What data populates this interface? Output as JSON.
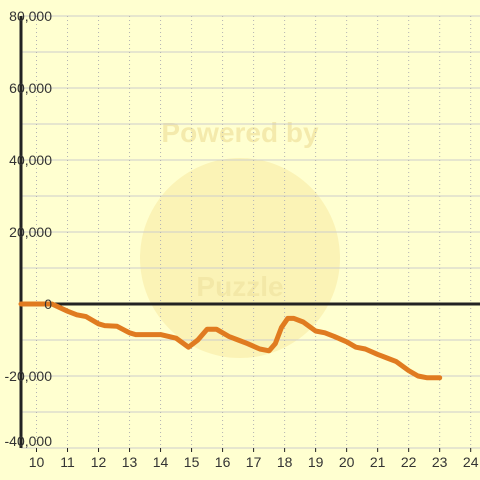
{
  "chart_data": {
    "type": "line",
    "title": "",
    "xlabel": "",
    "ylabel": "",
    "xlim": [
      9.5,
      24.3
    ],
    "ylim": [
      -40000,
      80000
    ],
    "x_ticks": [
      10,
      11,
      12,
      13,
      14,
      15,
      16,
      17,
      18,
      19,
      20,
      21,
      22,
      23,
      24
    ],
    "y_ticks": [
      -40000,
      -20000,
      0,
      20000,
      40000,
      60000,
      80000
    ],
    "x_tick_labels": [
      "10",
      "11",
      "12",
      "13",
      "14",
      "15",
      "16",
      "17",
      "18",
      "19",
      "20",
      "21",
      "22",
      "23",
      "24"
    ],
    "y_tick_labels": [
      "-40,000",
      "-20,000",
      "0",
      "20,000",
      "40,000",
      "60,000",
      "80,000"
    ],
    "grid": {
      "horizontal": "solid",
      "vertical": "dotted"
    },
    "series": [
      {
        "color": "#e07b20",
        "x": [
          9.5,
          10,
          10.5,
          11,
          11.3,
          11.6,
          12,
          12.2,
          12.6,
          13,
          13.2,
          13.5,
          14,
          14.5,
          14.9,
          15.2,
          15.5,
          15.8,
          16.2,
          16.5,
          16.8,
          17.2,
          17.5,
          17.7,
          17.9,
          18.1,
          18.3,
          18.6,
          19,
          19.3,
          19.6,
          20,
          20.3,
          20.6,
          21,
          21.3,
          21.6,
          22,
          22.3,
          22.6,
          23
        ],
        "y": [
          0,
          0,
          0,
          -2000,
          -3000,
          -3500,
          -5500,
          -6000,
          -6200,
          -8000,
          -8500,
          -8500,
          -8500,
          -9500,
          -12000,
          -10000,
          -7000,
          -7000,
          -9000,
          -10000,
          -11000,
          -12500,
          -13000,
          -11000,
          -6500,
          -4000,
          -4000,
          -5000,
          -7500,
          -8000,
          -9000,
          -10500,
          -12000,
          -12500,
          -14000,
          -15000,
          -16000,
          -18500,
          -20000,
          -20500,
          -20500
        ]
      }
    ]
  },
  "colors": {
    "background": "#ffffd0",
    "grid_h": "#cccccc",
    "grid_v": "#b3b3b3",
    "axis": "#222222",
    "zero_line": "#222222"
  },
  "watermark": {
    "line1": "Powered by",
    "line2": "Puzzle"
  }
}
